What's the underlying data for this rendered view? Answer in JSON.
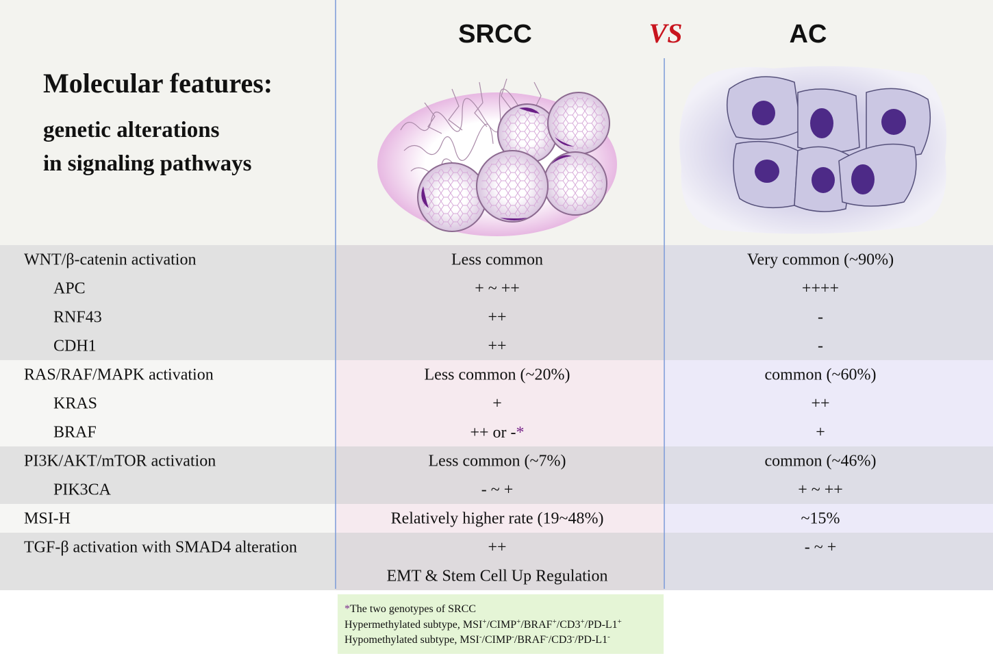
{
  "header": {
    "title": "Molecular features:",
    "subtitle": [
      "genetic alterations",
      "in signaling pathways"
    ],
    "columns": [
      "SRCC",
      "AC"
    ],
    "versus": "VS"
  },
  "table": {
    "groups": [
      {
        "rows": [
          {
            "label": "WNT/β-catenin activation",
            "srcc": "Less common",
            "ac": "Very common (~90%)"
          },
          {
            "label": "APC",
            "srcc": "+ ~ ++",
            "ac": "++++"
          },
          {
            "label": "RNF43",
            "srcc": "++",
            "ac": "-"
          },
          {
            "label": "CDH1",
            "srcc": "++",
            "ac": "-"
          }
        ]
      },
      {
        "rows": [
          {
            "label": "RAS/RAF/MAPK activation",
            "srcc": "Less common (~20%)",
            "ac": "common (~60%)"
          },
          {
            "label": "KRAS",
            "srcc": "+",
            "ac": "++"
          },
          {
            "label": "BRAF",
            "srcc": [
              "++ or -",
              "*"
            ],
            "ac": "+"
          }
        ]
      },
      {
        "rows": [
          {
            "label": "PI3K/AKT/mTOR activation",
            "srcc": "Less common (~7%)",
            "ac": "common (~46%)"
          },
          {
            "label": "PIK3CA",
            "srcc": "- ~ +",
            "ac": "+ ~ ++"
          }
        ]
      },
      {
        "rows": [
          {
            "label": "MSI-H",
            "srcc": "Relatively higher rate  (19~48%)",
            "ac": "~15%"
          }
        ]
      },
      {
        "rows": [
          {
            "label": "TGF-β activation with SMAD4 alteration",
            "srcc": "++",
            "ac": "- ~ +"
          },
          {
            "label": null,
            "srcc": "EMT & Stem Cell Up Regulation",
            "ac": null
          }
        ]
      }
    ]
  },
  "footnote": {
    "marker": "*",
    "title": "The two genotypes of SRCC",
    "lines": [
      [
        "Hypermethylated subtype, MSI",
        "+",
        "/CIMP",
        "+",
        "/BRAF",
        "+",
        "/CD3",
        "+",
        "/PD-L1",
        "+"
      ],
      [
        "Hypomethylated subtype, MSI",
        "-",
        "/CIMP",
        "-",
        "/BRAF",
        "-",
        "/CD3",
        "-",
        "/PD-L1",
        "-"
      ]
    ]
  }
}
